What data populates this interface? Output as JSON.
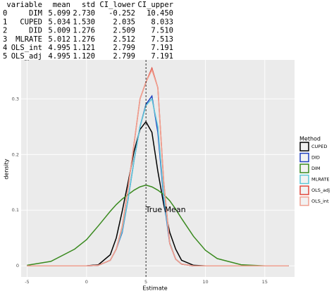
{
  "table": {
    "columns": [
      "variable",
      "mean",
      "std",
      "CI_lower",
      "CI_upper"
    ],
    "index": [
      "0",
      "1",
      "2",
      "3",
      "4",
      "5"
    ],
    "rows": [
      [
        "DIM",
        "5.099",
        "2.730",
        "-0.252",
        "10.450"
      ],
      [
        "CUPED",
        "5.034",
        "1.530",
        "2.035",
        "8.033"
      ],
      [
        "DID",
        "5.009",
        "1.276",
        "2.509",
        "7.510"
      ],
      [
        "MLRATE",
        "5.012",
        "1.276",
        "2.512",
        "7.513"
      ],
      [
        "OLS_int",
        "4.995",
        "1.121",
        "2.799",
        "7.191"
      ],
      [
        "OLS_adj",
        "4.995",
        "1.120",
        "2.799",
        "7.191"
      ]
    ]
  },
  "chart_data": {
    "type": "line",
    "x_label": "Estimate",
    "y_label": "density",
    "legend_title": "Method",
    "annotation": "True Mean",
    "vline": 5,
    "grid": true,
    "legend_position": "right",
    "xlim": [
      -5.5,
      17.5
    ],
    "ylim": [
      -0.02,
      0.37
    ],
    "xticks": [
      -5,
      0,
      5,
      10,
      15
    ],
    "yticks": [
      0,
      0.1,
      0.2,
      0.3
    ],
    "x": [
      -5,
      -3,
      -1,
      0,
      1,
      2,
      2.5,
      3,
      3.5,
      4,
      4.5,
      5,
      5.5,
      6,
      6.5,
      7,
      7.5,
      8,
      9,
      10,
      11,
      13,
      15,
      17
    ],
    "series": [
      {
        "name": "CUPED",
        "color": "#000000",
        "values": [
          0,
          0,
          0,
          0,
          0.002,
          0.02,
          0.05,
          0.098,
          0.15,
          0.206,
          0.245,
          0.259,
          0.24,
          0.17,
          0.11,
          0.06,
          0.03,
          0.01,
          0.001,
          0,
          0,
          0,
          0,
          0
        ]
      },
      {
        "name": "DID",
        "color": "#1f3fbf",
        "values": [
          0,
          0,
          0,
          0,
          0.001,
          0.01,
          0.03,
          0.06,
          0.12,
          0.19,
          0.25,
          0.29,
          0.305,
          0.24,
          0.12,
          0.04,
          0.012,
          0.003,
          0,
          0,
          0,
          0,
          0,
          0
        ]
      },
      {
        "name": "DIM",
        "color": "#3a8a1f",
        "values": [
          0.001,
          0.008,
          0.03,
          0.047,
          0.072,
          0.098,
          0.11,
          0.12,
          0.128,
          0.136,
          0.142,
          0.145,
          0.142,
          0.136,
          0.128,
          0.117,
          0.102,
          0.085,
          0.053,
          0.028,
          0.013,
          0.002,
          0,
          0
        ]
      },
      {
        "name": "MLRATE",
        "color": "#5fc6d6",
        "values": [
          0,
          0,
          0,
          0,
          0.001,
          0.01,
          0.03,
          0.062,
          0.12,
          0.19,
          0.25,
          0.288,
          0.3,
          0.25,
          0.125,
          0.042,
          0.012,
          0.003,
          0,
          0,
          0,
          0,
          0,
          0
        ]
      },
      {
        "name": "OLS_adj",
        "color": "#e0463a",
        "values": [
          0,
          0,
          0,
          0,
          0.001,
          0.01,
          0.03,
          0.07,
          0.14,
          0.22,
          0.3,
          0.33,
          0.355,
          0.32,
          0.15,
          0.04,
          0.012,
          0.003,
          0,
          0,
          0,
          0,
          0,
          0
        ]
      },
      {
        "name": "OLS_int",
        "color": "#f0a090",
        "values": [
          0,
          0,
          0,
          0,
          0.001,
          0.01,
          0.03,
          0.07,
          0.14,
          0.22,
          0.3,
          0.33,
          0.352,
          0.32,
          0.15,
          0.04,
          0.012,
          0.003,
          0,
          0,
          0,
          0,
          0,
          0
        ]
      }
    ]
  }
}
